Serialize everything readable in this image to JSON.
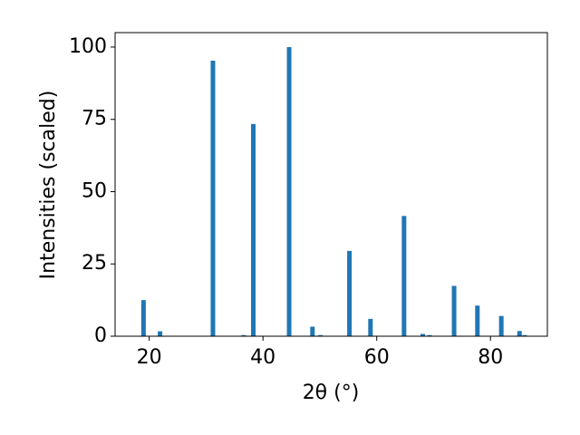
{
  "chart_data": {
    "type": "bar",
    "x": [
      19.0,
      21.9,
      31.2,
      36.6,
      38.3,
      44.6,
      48.7,
      50.1,
      55.2,
      58.9,
      64.8,
      68.1,
      69.3,
      73.6,
      77.7,
      81.9,
      85.1,
      86.0
    ],
    "values": [
      12.5,
      1.7,
      95.3,
      0.4,
      73.4,
      100,
      3.3,
      0.4,
      29.5,
      6,
      41.6,
      0.8,
      0.4,
      17.4,
      10.6,
      7,
      1.8,
      0.4
    ],
    "color": "#1f77b4",
    "xlabel": "2θ (°)",
    "ylabel": "Intensities (scaled)",
    "xlim": [
      14,
      90
    ],
    "ylim": [
      0,
      105
    ],
    "xticks": [
      20,
      40,
      60,
      80
    ],
    "yticks": [
      0,
      25,
      50,
      75,
      100
    ]
  }
}
